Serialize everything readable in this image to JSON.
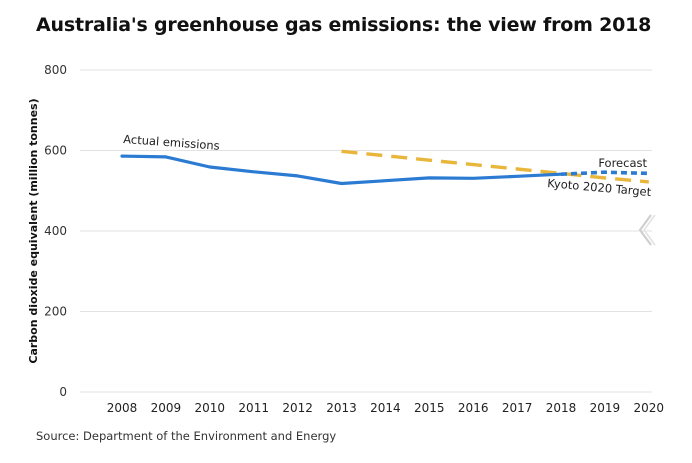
{
  "chart_data": {
    "type": "line",
    "title": "Australia's greenhouse gas emissions: the view from 2018",
    "xlabel": "",
    "ylabel": "Carbon dioxide equivalent (million tonnes)",
    "ylim": [
      0,
      800
    ],
    "yticks": [
      0,
      200,
      400,
      600,
      800
    ],
    "x": [
      2008,
      2009,
      2010,
      2011,
      2012,
      2013,
      2014,
      2015,
      2016,
      2017,
      2018,
      2019,
      2020
    ],
    "grid": true,
    "series": [
      {
        "name": "Actual emissions",
        "color": "#2b7bd3",
        "style": "solid",
        "x": [
          2008,
          2009,
          2010,
          2011,
          2012,
          2013,
          2014,
          2015,
          2016,
          2017,
          2018
        ],
        "values": [
          586,
          584,
          559,
          547,
          537,
          518,
          525,
          532,
          531,
          536,
          541
        ]
      },
      {
        "name": "Forecast",
        "color": "#2b7bd3",
        "style": "dotted",
        "x": [
          2018,
          2019,
          2020
        ],
        "values": [
          541,
          546,
          543
        ]
      },
      {
        "name": "Kyoto 2020 Target",
        "color": "#e9b63c",
        "style": "dashed",
        "x": [
          2013,
          2014,
          2015,
          2016,
          2017,
          2018,
          2019,
          2020
        ],
        "values": [
          598,
          587,
          576,
          565,
          554,
          543,
          532,
          522
        ]
      }
    ],
    "source": "Source: Department of the Environment and Energy"
  },
  "icons": {
    "nav_arrow": "chevron-left-icon"
  }
}
